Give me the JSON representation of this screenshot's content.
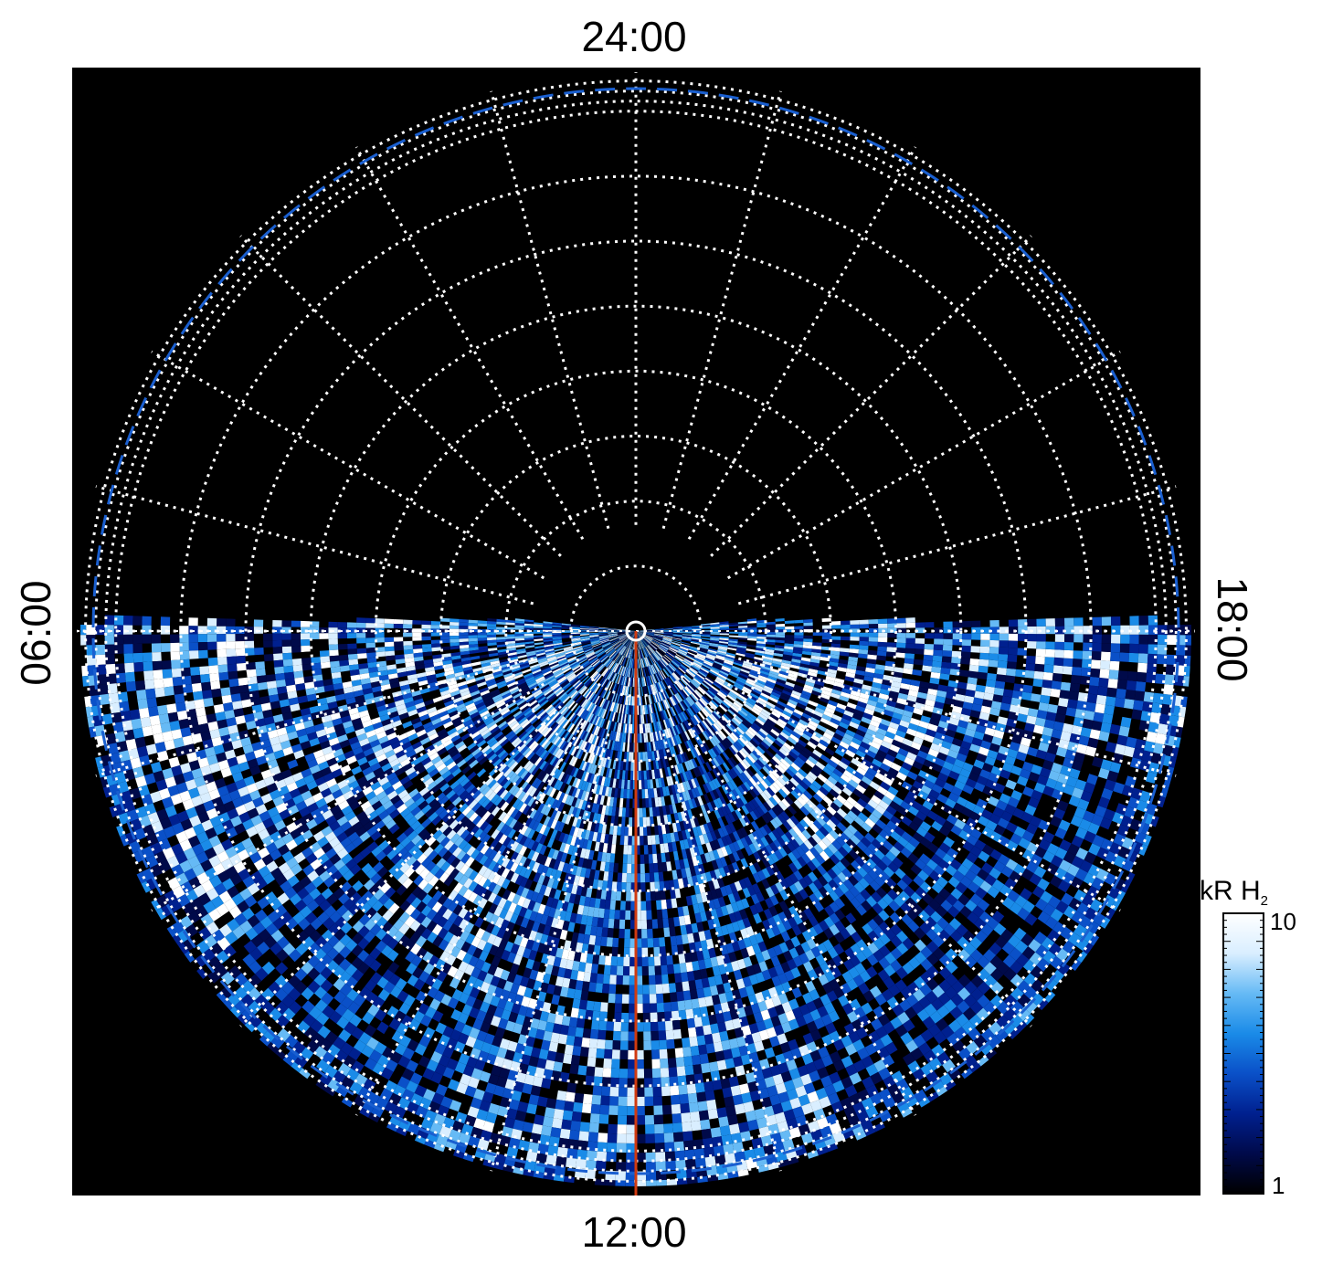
{
  "chart_data": {
    "type": "heatmap",
    "projection": "polar",
    "local_time_labels": {
      "top": "24:00",
      "bottom": "12:00",
      "left": "06:00",
      "right": "18:00"
    },
    "colorbar": {
      "title": "kR H",
      "title_subscript": "2",
      "scale": "log",
      "min_label": "1",
      "max_label": "10",
      "range": [
        1,
        10
      ],
      "colors": [
        "#000000",
        "#000a4a",
        "#00208f",
        "#0a50c8",
        "#1a8be8",
        "#66baf5",
        "#d9eeff",
        "#ffffff"
      ]
    },
    "grid": {
      "style": "dotted",
      "color": "#ffffff",
      "meridian_count": 24,
      "parallel_count": 11
    },
    "reference_oval": {
      "style": "dashed",
      "color": "#1a5fd0"
    },
    "meridian_line": {
      "local_time": "12:00",
      "color": "#d03a10"
    },
    "background": "#000000",
    "emission_regions": [
      {
        "lt_range": [
          5.6,
          18.4
        ],
        "colat_range": [
          0.55,
          1.0
        ],
        "intensity": 0.55
      },
      {
        "lt_range": [
          6.0,
          8.5
        ],
        "colat_range": [
          0.7,
          0.95
        ],
        "intensity": 0.85
      },
      {
        "lt_range": [
          14.5,
          17.5
        ],
        "colat_range": [
          0.2,
          0.55
        ],
        "intensity": 0.9
      },
      {
        "lt_range": [
          9.0,
          11.5
        ],
        "colat_range": [
          0.35,
          0.7
        ],
        "intensity": 0.8
      },
      {
        "lt_range": [
          10.5,
          13.5
        ],
        "colat_range": [
          0.85,
          1.0
        ],
        "intensity": 0.75
      }
    ]
  }
}
